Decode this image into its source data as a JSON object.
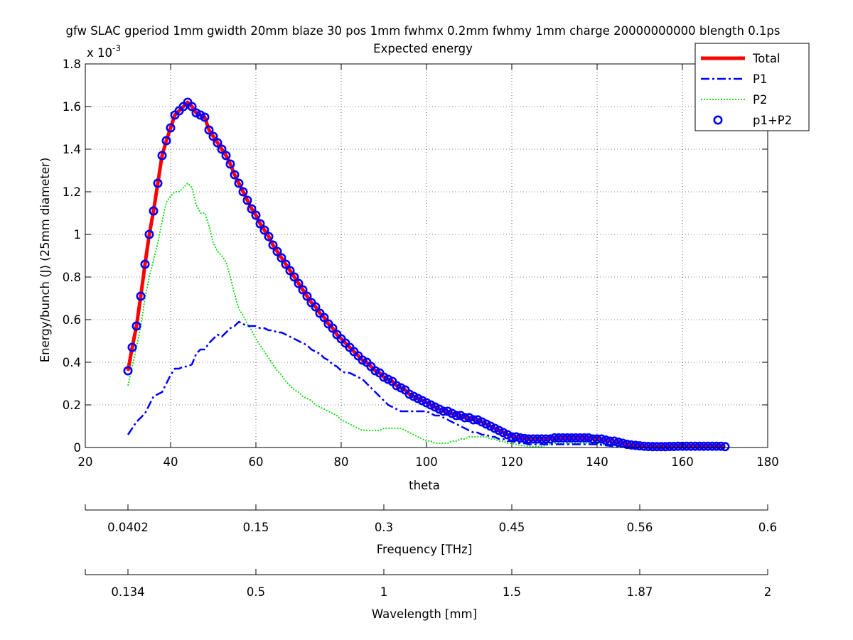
{
  "title": "gfw SLAC gperiod 1mm gwidth 20mm blaze 30 pos 1mm fwhmx 0.2mm fwhmy 1mm charge 20000000000 blength 0.1ps",
  "subtitle": "Expected energy",
  "chart_data": {
    "type": "line",
    "xlabel": "theta",
    "ylabel": "Energy/bunch (J) (25mm diameter)",
    "y_multiplier": "x 10",
    "y_exponent": "-3",
    "xlim": [
      20,
      180
    ],
    "ylim": [
      0,
      1.8
    ],
    "grid": true,
    "legend_position": "top-right",
    "x_ticks": [
      "20",
      "40",
      "60",
      "80",
      "100",
      "120",
      "140",
      "160",
      "180"
    ],
    "y_ticks": [
      "0",
      "0.2",
      "0.4",
      "0.6",
      "0.8",
      "1",
      "1.2",
      "1.4",
      "1.6",
      "1.8"
    ],
    "theta": [
      30,
      31,
      32,
      33,
      34,
      35,
      36,
      37,
      38,
      39,
      40,
      41,
      42,
      43,
      44,
      45,
      46,
      47,
      48,
      49,
      50,
      51,
      52,
      53,
      54,
      55,
      56,
      57,
      58,
      59,
      60,
      61,
      62,
      63,
      64,
      65,
      66,
      67,
      68,
      69,
      70,
      71,
      72,
      73,
      74,
      75,
      76,
      77,
      78,
      79,
      80,
      81,
      82,
      83,
      84,
      85,
      86,
      87,
      88,
      89,
      90,
      91,
      92,
      93,
      94,
      95,
      96,
      97,
      98,
      99,
      100,
      101,
      102,
      103,
      104,
      105,
      106,
      107,
      108,
      109,
      110,
      111,
      112,
      113,
      114,
      115,
      116,
      117,
      118,
      119,
      120,
      121,
      122,
      123,
      124,
      125,
      126,
      127,
      128,
      129,
      130,
      131,
      132,
      133,
      134,
      135,
      136,
      137,
      138,
      139,
      140,
      141,
      142,
      143,
      144,
      145,
      146,
      147,
      148,
      149,
      150,
      151,
      152,
      153,
      154,
      155,
      156,
      157,
      158,
      159,
      160,
      161,
      162,
      163,
      164,
      165,
      166,
      167,
      168,
      169,
      170
    ],
    "series": [
      {
        "name": "Total",
        "color": "#ff0000",
        "style": "solid",
        "values": [
          0.36,
          0.47,
          0.57,
          0.71,
          0.86,
          1.0,
          1.11,
          1.24,
          1.37,
          1.44,
          1.5,
          1.56,
          1.58,
          1.6,
          1.62,
          1.6,
          1.57,
          1.56,
          1.55,
          1.49,
          1.46,
          1.43,
          1.4,
          1.37,
          1.33,
          1.28,
          1.24,
          1.2,
          1.16,
          1.12,
          1.09,
          1.05,
          1.02,
          0.99,
          0.95,
          0.92,
          0.89,
          0.86,
          0.83,
          0.8,
          0.77,
          0.74,
          0.71,
          0.68,
          0.66,
          0.63,
          0.61,
          0.58,
          0.56,
          0.53,
          0.51,
          0.49,
          0.47,
          0.45,
          0.43,
          0.41,
          0.4,
          0.38,
          0.36,
          0.35,
          0.33,
          0.32,
          0.31,
          0.29,
          0.28,
          0.27,
          0.25,
          0.24,
          0.23,
          0.22,
          0.21,
          0.2,
          0.19,
          0.18,
          0.17,
          0.17,
          0.16,
          0.15,
          0.15,
          0.14,
          0.14,
          0.13,
          0.13,
          0.12,
          0.11,
          0.1,
          0.09,
          0.08,
          0.07,
          0.06,
          0.05,
          0.05,
          0.045,
          0.042,
          0.04,
          0.04,
          0.04,
          0.04,
          0.04,
          0.04,
          0.045,
          0.045,
          0.045,
          0.045,
          0.045,
          0.045,
          0.045,
          0.045,
          0.045,
          0.04,
          0.04,
          0.04,
          0.035,
          0.03,
          0.03,
          0.025,
          0.02,
          0.015,
          0.012,
          0.01,
          0.008,
          0.006,
          0.005,
          0.004,
          0.004,
          0.004,
          0.004,
          0.005,
          0.005,
          0.006,
          0.006,
          0.006,
          0.006,
          0.006,
          0.006,
          0.006,
          0.006,
          0.006,
          0.006,
          0.006,
          0.004
        ]
      },
      {
        "name": "P1",
        "color": "#0000ff",
        "style": "dashdot",
        "values": [
          0.06,
          0.09,
          0.12,
          0.14,
          0.16,
          0.2,
          0.24,
          0.25,
          0.26,
          0.3,
          0.34,
          0.37,
          0.37,
          0.38,
          0.38,
          0.39,
          0.44,
          0.46,
          0.46,
          0.49,
          0.51,
          0.53,
          0.52,
          0.54,
          0.56,
          0.57,
          0.59,
          0.58,
          0.57,
          0.57,
          0.57,
          0.56,
          0.56,
          0.55,
          0.55,
          0.54,
          0.54,
          0.53,
          0.52,
          0.51,
          0.5,
          0.49,
          0.48,
          0.46,
          0.45,
          0.44,
          0.42,
          0.41,
          0.39,
          0.38,
          0.36,
          0.35,
          0.35,
          0.34,
          0.33,
          0.32,
          0.3,
          0.28,
          0.26,
          0.24,
          0.22,
          0.2,
          0.19,
          0.18,
          0.17,
          0.17,
          0.17,
          0.17,
          0.17,
          0.17,
          0.17,
          0.16,
          0.15,
          0.15,
          0.14,
          0.13,
          0.12,
          0.11,
          0.1,
          0.09,
          0.08,
          0.07,
          0.07,
          0.06,
          0.06,
          0.05,
          0.05,
          0.04,
          0.04,
          0.03,
          0.03,
          0.025,
          0.02,
          0.02,
          0.015,
          0.015,
          0.015,
          0.015,
          0.015,
          0.015,
          0.015,
          0.015,
          0.015,
          0.015,
          0.015,
          0.015,
          0.015,
          0.015,
          0.015,
          0.015,
          0.015,
          0.012,
          0.01,
          0.008,
          0.006,
          0.005,
          0.004,
          0.003,
          0.002,
          0.002,
          0.002,
          0.002,
          0.002,
          0.002,
          0.002,
          0.002,
          0.002,
          0.002,
          0.002,
          0.002,
          0.002,
          0.002,
          0.002,
          0.002,
          0.002,
          0.002,
          0.002,
          0.002,
          0.002,
          0.002,
          0.002
        ]
      },
      {
        "name": "P2",
        "color": "#00dd00",
        "style": "dotted",
        "values": [
          0.29,
          0.38,
          0.47,
          0.57,
          0.7,
          0.8,
          0.88,
          0.96,
          1.06,
          1.15,
          1.18,
          1.2,
          1.2,
          1.22,
          1.24,
          1.22,
          1.14,
          1.1,
          1.1,
          1.04,
          0.96,
          0.92,
          0.9,
          0.87,
          0.8,
          0.72,
          0.65,
          0.62,
          0.58,
          0.55,
          0.51,
          0.48,
          0.45,
          0.42,
          0.39,
          0.36,
          0.34,
          0.31,
          0.29,
          0.27,
          0.26,
          0.24,
          0.23,
          0.22,
          0.2,
          0.19,
          0.18,
          0.17,
          0.16,
          0.15,
          0.13,
          0.12,
          0.11,
          0.1,
          0.09,
          0.08,
          0.08,
          0.08,
          0.08,
          0.08,
          0.09,
          0.09,
          0.09,
          0.09,
          0.09,
          0.08,
          0.07,
          0.06,
          0.05,
          0.04,
          0.03,
          0.03,
          0.02,
          0.02,
          0.02,
          0.02,
          0.03,
          0.03,
          0.04,
          0.04,
          0.05,
          0.05,
          0.05,
          0.05,
          0.05,
          0.04,
          0.04,
          0.03,
          0.03,
          0.02,
          0.02,
          0.015,
          0.01,
          0.008,
          0.006,
          0.005,
          0.005,
          0.005,
          0.01,
          0.015,
          0.02,
          0.02,
          0.02,
          0.02,
          0.02,
          0.02,
          0.02,
          0.02,
          0.02,
          0.02,
          0.02,
          0.015,
          0.012,
          0.01,
          0.008,
          0.006,
          0.005,
          0.004,
          0.003,
          0.002,
          0.002,
          0.002,
          0.002,
          0.002,
          0.002,
          0.002,
          0.002,
          0.002,
          0.002,
          0.002,
          0.002,
          0.002,
          0.002,
          0.002,
          0.002,
          0.002,
          0.002,
          0.002,
          0.002,
          0.002,
          0.002
        ]
      },
      {
        "name": "p1+P2",
        "color": "#0000ff",
        "style": "circles",
        "values": [
          0.36,
          0.47,
          0.57,
          0.71,
          0.86,
          1.0,
          1.11,
          1.24,
          1.37,
          1.44,
          1.5,
          1.56,
          1.58,
          1.6,
          1.62,
          1.6,
          1.57,
          1.56,
          1.55,
          1.49,
          1.46,
          1.43,
          1.4,
          1.37,
          1.33,
          1.28,
          1.24,
          1.2,
          1.16,
          1.12,
          1.09,
          1.05,
          1.02,
          0.99,
          0.95,
          0.92,
          0.89,
          0.86,
          0.83,
          0.8,
          0.77,
          0.74,
          0.71,
          0.68,
          0.66,
          0.63,
          0.61,
          0.58,
          0.56,
          0.53,
          0.51,
          0.49,
          0.47,
          0.45,
          0.43,
          0.41,
          0.4,
          0.38,
          0.36,
          0.35,
          0.33,
          0.32,
          0.31,
          0.29,
          0.28,
          0.27,
          0.25,
          0.24,
          0.23,
          0.22,
          0.21,
          0.2,
          0.19,
          0.18,
          0.17,
          0.17,
          0.16,
          0.15,
          0.15,
          0.14,
          0.14,
          0.13,
          0.13,
          0.12,
          0.11,
          0.1,
          0.09,
          0.08,
          0.07,
          0.06,
          0.05,
          0.05,
          0.045,
          0.042,
          0.04,
          0.04,
          0.04,
          0.04,
          0.04,
          0.04,
          0.045,
          0.045,
          0.045,
          0.045,
          0.045,
          0.045,
          0.045,
          0.045,
          0.045,
          0.04,
          0.04,
          0.04,
          0.035,
          0.03,
          0.03,
          0.025,
          0.02,
          0.015,
          0.012,
          0.01,
          0.008,
          0.006,
          0.005,
          0.004,
          0.004,
          0.004,
          0.004,
          0.005,
          0.005,
          0.006,
          0.006,
          0.006,
          0.006,
          0.006,
          0.006,
          0.006,
          0.006,
          0.006,
          0.006,
          0.006,
          0.004
        ]
      }
    ],
    "secondary_axes": [
      {
        "label": "Frequency [THz]",
        "ticks": [
          {
            "theta": 30,
            "label": "0.0402"
          },
          {
            "theta": 60,
            "label": "0.15"
          },
          {
            "theta": 90,
            "label": "0.3"
          },
          {
            "theta": 120,
            "label": "0.45"
          },
          {
            "theta": 150,
            "label": "0.56"
          },
          {
            "theta": 180,
            "label": "0.6"
          }
        ]
      },
      {
        "label": "Wavelength [mm]",
        "ticks": [
          {
            "theta": 30,
            "label": "0.134"
          },
          {
            "theta": 60,
            "label": "0.5"
          },
          {
            "theta": 90,
            "label": "1"
          },
          {
            "theta": 120,
            "label": "1.5"
          },
          {
            "theta": 150,
            "label": "1.87"
          },
          {
            "theta": 180,
            "label": "2"
          }
        ]
      }
    ]
  }
}
